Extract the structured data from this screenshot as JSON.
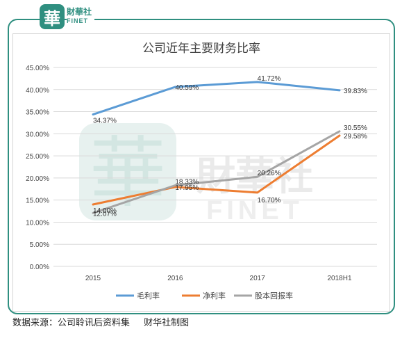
{
  "brand": {
    "logo_glyph": "華",
    "name_cn": "財華社",
    "name_en": "FINET",
    "color": "#2f8f80"
  },
  "watermark": {
    "glyph": "華",
    "name_cn": "財華社",
    "name_en": "FINET"
  },
  "chart_data": {
    "type": "line",
    "title": "公司近年主要财务比率",
    "categories": [
      "2015",
      "2016",
      "2017",
      "2018H1"
    ],
    "ylim": [
      0,
      45
    ],
    "ytick_step": 5,
    "yticks": [
      "0.00%",
      "5.00%",
      "10.00%",
      "15.00%",
      "20.00%",
      "25.00%",
      "30.00%",
      "35.00%",
      "40.00%",
      "45.00%"
    ],
    "grid": true,
    "legend_position": "bottom",
    "series": [
      {
        "name": "毛利率",
        "color": "#5b9bd5",
        "values": [
          34.37,
          40.59,
          41.72,
          39.83
        ],
        "labels": [
          "34.37%",
          "40.59%",
          "41.72%",
          "39.83%"
        ]
      },
      {
        "name": "净利率",
        "color": "#ed7d31",
        "values": [
          14.0,
          17.95,
          16.7,
          29.58
        ],
        "labels": [
          "14.00%",
          "17.95%",
          "16.70%",
          "29.58%"
        ]
      },
      {
        "name": "股本回报率",
        "color": "#a5a5a5",
        "values": [
          12.07,
          18.33,
          20.26,
          30.55
        ],
        "labels": [
          "12.07%",
          "18.33%",
          "20.26%",
          "30.55%"
        ]
      }
    ]
  },
  "footer": {
    "source": "数据来源：公司聆讯后资料集",
    "credit": "财华社制图"
  }
}
